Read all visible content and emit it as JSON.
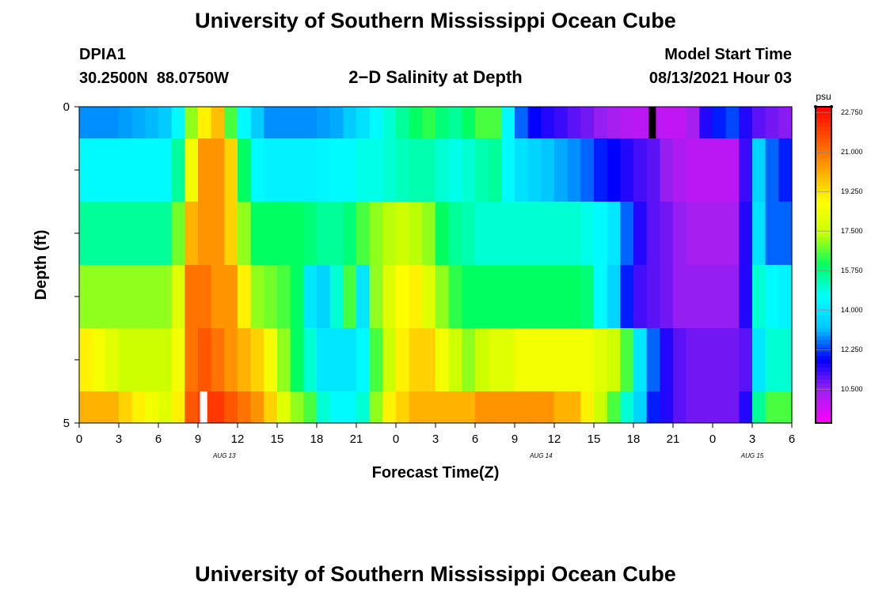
{
  "title": "University of Southern Mississippi Ocean Cube",
  "footer_title": "University of Southern Mississippi Ocean Cube",
  "station": {
    "name": "DPIA1",
    "coords": "30.2500N  88.0750W"
  },
  "model": {
    "label": "Model Start Time",
    "time": "08/13/2021 Hour 03"
  },
  "chart_data": {
    "type": "heatmap",
    "title": "2−D Salinity at Depth",
    "xlabel": "Forecast Time(Z)",
    "ylabel": "Depth (ft)",
    "x_ticks": [
      "0",
      "3",
      "6",
      "9",
      "12",
      "15",
      "18",
      "21",
      "0",
      "3",
      "6",
      "9",
      "12",
      "15",
      "18",
      "21",
      "0",
      "3",
      "6"
    ],
    "day_labels": [
      {
        "label": "AUG  13",
        "hour_index": 11
      },
      {
        "label": "AUG  14",
        "hour_index": 35
      },
      {
        "label": "AUG  15",
        "hour_index": 51
      }
    ],
    "y_ticks": [
      "0",
      "5"
    ],
    "ylim": [
      0,
      5
    ],
    "hours": 54,
    "depth_layers": 5,
    "layers": [
      [
        12.8,
        12.8,
        12.8,
        12.9,
        13.0,
        13.1,
        13.3,
        14.5,
        17.0,
        19.0,
        19.8,
        16.5,
        14.5,
        13.3,
        12.8,
        12.8,
        12.8,
        12.8,
        12.9,
        13.0,
        13.3,
        13.8,
        14.5,
        15.0,
        15.5,
        16.0,
        16.3,
        15.8,
        15.5,
        16.0,
        16.5,
        16.5,
        14.5,
        12.5,
        11.8,
        11.5,
        11.3,
        11.0,
        10.8,
        10.5,
        10.3,
        10.1,
        10.0,
        10.0,
        9.9,
        9.9,
        10.3,
        11.5,
        12.0,
        12.3,
        11.5,
        11.0,
        10.8,
        10.6
      ],
      [
        14.5,
        14.5,
        14.5,
        14.5,
        14.5,
        14.5,
        14.5,
        15.5,
        18.5,
        20.5,
        20.5,
        19.5,
        16.0,
        14.5,
        14.3,
        14.3,
        14.3,
        14.3,
        14.4,
        14.5,
        14.5,
        14.8,
        14.8,
        15.0,
        15.2,
        15.3,
        15.3,
        15.0,
        14.8,
        15.0,
        15.3,
        15.5,
        14.5,
        13.8,
        13.5,
        13.2,
        13.0,
        12.8,
        12.5,
        12.0,
        11.8,
        11.5,
        11.2,
        11.0,
        10.5,
        10.2,
        10.0,
        10.0,
        10.0,
        10.0,
        11.3,
        13.5,
        12.5,
        12.0
      ],
      [
        15.5,
        15.5,
        15.5,
        15.5,
        15.5,
        15.5,
        15.5,
        16.8,
        20.0,
        20.5,
        20.5,
        19.5,
        17.0,
        16.0,
        16.0,
        16.0,
        16.0,
        15.8,
        15.5,
        15.5,
        15.8,
        16.5,
        17.0,
        17.3,
        17.5,
        17.3,
        17.0,
        16.0,
        15.5,
        15.3,
        15.0,
        15.0,
        15.0,
        15.0,
        15.0,
        15.0,
        15.0,
        15.0,
        14.8,
        14.5,
        14.0,
        12.5,
        11.5,
        11.0,
        10.8,
        10.5,
        10.3,
        10.3,
        10.3,
        10.3,
        11.5,
        13.8,
        12.5,
        12.5
      ],
      [
        17.0,
        17.0,
        17.0,
        17.0,
        17.0,
        17.0,
        17.0,
        18.0,
        21.0,
        21.0,
        20.5,
        20.5,
        19.0,
        17.0,
        16.8,
        16.5,
        16.0,
        14.0,
        13.5,
        15.0,
        16.5,
        14.0,
        17.0,
        18.0,
        18.8,
        19.0,
        18.0,
        17.0,
        16.3,
        16.0,
        16.0,
        16.0,
        16.0,
        16.0,
        16.0,
        16.0,
        16.0,
        16.0,
        15.8,
        14.5,
        13.5,
        12.0,
        11.2,
        11.0,
        10.8,
        10.5,
        10.5,
        10.5,
        10.5,
        10.5,
        11.5,
        15.0,
        14.5,
        14.3
      ],
      [
        19.0,
        18.5,
        18.0,
        17.5,
        17.5,
        17.5,
        17.5,
        18.5,
        21.0,
        21.5,
        21.0,
        20.5,
        20.0,
        19.5,
        18.5,
        17.0,
        16.0,
        15.0,
        14.0,
        14.0,
        14.0,
        14.5,
        16.5,
        17.5,
        19.0,
        19.5,
        19.5,
        18.5,
        17.5,
        17.0,
        17.5,
        18.0,
        18.0,
        18.5,
        18.5,
        18.5,
        18.5,
        18.5,
        18.5,
        18.0,
        17.5,
        16.5,
        14.0,
        12.5,
        11.5,
        11.0,
        10.8,
        10.8,
        10.8,
        10.8,
        11.0,
        14.0,
        15.0,
        15.0
      ],
      [
        20.0,
        20.0,
        20.0,
        19.5,
        19.0,
        18.5,
        18.0,
        19.0,
        21.5,
        22.0,
        22.0,
        21.5,
        21.0,
        20.5,
        19.5,
        18.0,
        17.0,
        16.5,
        15.0,
        14.5,
        14.5,
        15.0,
        17.0,
        19.0,
        19.5,
        20.0,
        20.0,
        20.0,
        20.0,
        20.0,
        20.5,
        20.5,
        20.5,
        20.5,
        20.5,
        20.5,
        20.0,
        20.0,
        19.0,
        17.5,
        16.5,
        15.0,
        13.5,
        12.0,
        11.5,
        11.0,
        10.8,
        10.8,
        10.8,
        10.8,
        11.5,
        15.5,
        16.5,
        16.5
      ]
    ],
    "row_depths": [
      0,
      0.5,
      1.5,
      2.5,
      3.5,
      4.5
    ],
    "colorbar": {
      "unit": "psu",
      "range": [
        9.0,
        23.0
      ],
      "tick_labels": [
        "22.750",
        "21.000",
        "19.250",
        "17.500",
        "15.750",
        "14.000",
        "12.250",
        "10.500"
      ],
      "tick_values": [
        22.75,
        21.0,
        19.25,
        17.5,
        15.75,
        14.0,
        12.25,
        10.5
      ],
      "stops": [
        "#ff00ff",
        "#a020f0",
        "#0000ff",
        "#00c8ff",
        "#00ffff",
        "#00ff60",
        "#c8ff00",
        "#ffff00",
        "#ffa500",
        "#ff5000",
        "#ff0000"
      ]
    },
    "markers": [
      {
        "hour_index": 43,
        "depth_row": 0,
        "color": "#000000"
      },
      {
        "hour_index": 9,
        "depth_row": 5,
        "color": "#ffffff"
      }
    ]
  }
}
